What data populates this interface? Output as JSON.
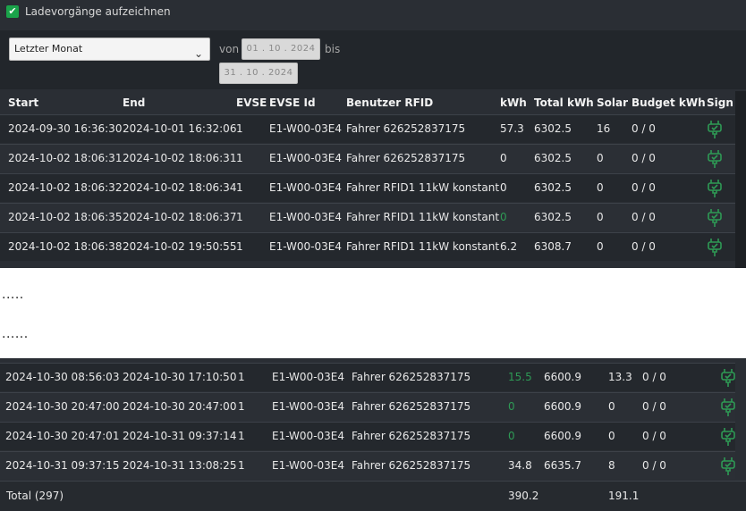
{
  "checkbox": {
    "label": "Ladevorgänge aufzeichnen",
    "checked": true
  },
  "filter": {
    "period": "Letzter Monat",
    "from_label": "von",
    "from_date": "01 . 10 . 2024",
    "to_label": "bis",
    "to_date": "31 . 10 . 2024"
  },
  "table": {
    "headers": [
      "Start",
      "End",
      "EVSE",
      "EVSE Id",
      "Benutzer RFID",
      "kWh",
      "Total kWh",
      "Solar",
      "Budget kWh",
      "Sign"
    ],
    "rows_top": [
      [
        "2024-09-30 16:36:30",
        "2024-10-01 16:32:06",
        "1",
        "E1-W00-03E4",
        "Fahrer 626252837175",
        "57.3",
        "6302.5",
        "16",
        "0 / 0"
      ],
      [
        "2024-10-02 18:06:31",
        "2024-10-02 18:06:31",
        "1",
        "E1-W00-03E4",
        "Fahrer 626252837175",
        "0",
        "6302.5",
        "0",
        "0 / 0"
      ],
      [
        "2024-10-02 18:06:32",
        "2024-10-02 18:06:34",
        "1",
        "E1-W00-03E4",
        "Fahrer RFID1 11kW konstant",
        "0",
        "6302.5",
        "0",
        "0 / 0"
      ],
      [
        "2024-10-02 18:06:35",
        "2024-10-02 18:06:37",
        "1",
        "E1-W00-03E4",
        "Fahrer RFID1 11kW konstant",
        "0",
        "6302.5",
        "0",
        "0 / 0"
      ],
      [
        "2024-10-02 18:06:38",
        "2024-10-02 19:50:55",
        "1",
        "E1-W00-03E4",
        "Fahrer RFID1 11kW konstant",
        "6.2",
        "6308.7",
        "0",
        "0 / 0"
      ]
    ],
    "rows_top_kwh_green": [
      false,
      false,
      false,
      true,
      false
    ],
    "rows_bottom": [
      [
        "2024-10-30 08:56:03",
        "2024-10-30 17:10:50",
        "1",
        "E1-W00-03E4",
        "Fahrer 626252837175",
        "15.5",
        "6600.9",
        "13.3",
        "0 / 0"
      ],
      [
        "2024-10-30 20:47:00",
        "2024-10-30 20:47:00",
        "1",
        "E1-W00-03E4",
        "Fahrer 626252837175",
        "0",
        "6600.9",
        "0",
        "0 / 0"
      ],
      [
        "2024-10-30 20:47:01",
        "2024-10-31 09:37:14",
        "1",
        "E1-W00-03E4",
        "Fahrer 626252837175",
        "0",
        "6600.9",
        "0",
        "0 / 0"
      ],
      [
        "2024-10-31 09:37:15",
        "2024-10-31 13:08:25",
        "1",
        "E1-W00-03E4",
        "Fahrer 626252837175",
        "34.8",
        "6635.7",
        "8",
        "0 / 0"
      ]
    ],
    "rows_bottom_kwh_green": [
      true,
      true,
      true,
      false
    ],
    "total": {
      "label": "Total (297)",
      "kwh": "390.2",
      "solar": "191.1"
    }
  },
  "separators": [
    ".....",
    "......"
  ],
  "sign_icon": "plug-sign-icon",
  "colors": {
    "accent_green": "#1aa34a",
    "sign_green": "#2e9a55"
  }
}
